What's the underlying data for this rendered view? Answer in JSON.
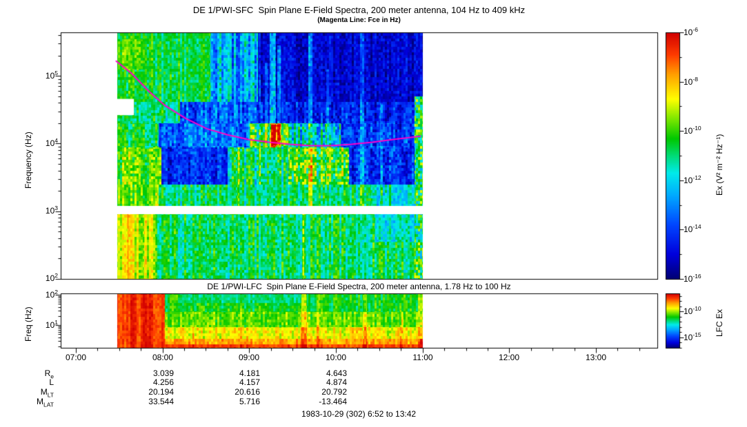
{
  "colors": {
    "magenta_line": "#ff00c8",
    "axis": "#000000",
    "background": "#ffffff"
  },
  "header": {
    "title": "DE 1/PWI-SFC  Spin Plane E-Field Spectra, 200 meter antenna, 104 Hz to 409 kHz",
    "subtitle": "(Magenta Line: Fce in Hz)"
  },
  "sfc_panel": {
    "ylabel": "Frequency (Hz)",
    "y_ticks": [
      {
        "base": "10",
        "exp": "5"
      },
      {
        "base": "10",
        "exp": "4"
      },
      {
        "base": "10",
        "exp": "3"
      },
      {
        "base": "10",
        "exp": "2"
      }
    ],
    "colorbar": {
      "label": "Ex (V² m⁻² Hz⁻¹)",
      "ticks": [
        {
          "base": "10",
          "exp": "-6"
        },
        {
          "base": "10",
          "exp": "-8"
        },
        {
          "base": "10",
          "exp": "-10"
        },
        {
          "base": "10",
          "exp": "-12"
        },
        {
          "base": "10",
          "exp": "-14"
        },
        {
          "base": "10",
          "exp": "-16"
        }
      ]
    }
  },
  "lfc_panel": {
    "title": "DE 1/PWI-LFC  Spin Plane E-Field Spectra, 200 meter antenna, 1.78 Hz to 100 Hz",
    "ylabel": "Freq (Hz)",
    "y_ticks": [
      {
        "base": "10",
        "exp": "2"
      },
      {
        "base": "10",
        "exp": "1"
      }
    ],
    "colorbar": {
      "label": "LFC Ex",
      "ticks": [
        {
          "base": "10",
          "exp": "-10"
        },
        {
          "base": "10",
          "exp": "-15"
        }
      ]
    }
  },
  "time_axis": {
    "labels": [
      "07:00",
      "08:00",
      "09:00",
      "10:00",
      "11:00",
      "12:00",
      "13:00"
    ]
  },
  "orbit_rows": [
    {
      "base": "R",
      "sub": "e",
      "values": [
        "3.039",
        "4.181",
        "4.643"
      ]
    },
    {
      "base": "L",
      "sub": "",
      "values": [
        "4.256",
        "4.157",
        "4.874"
      ]
    },
    {
      "base": "M",
      "sub": "LT",
      "values": [
        "20.194",
        "20.616",
        "20.792"
      ]
    },
    {
      "base": "M",
      "sub": "LAT",
      "values": [
        "33.544",
        "5.716",
        "-13.464"
      ]
    }
  ],
  "footer": {
    "caption": "1983-10-29 (302) 6:52 to 13:42"
  },
  "chart_data": {
    "type": "heatmap",
    "colormap": "rainbow",
    "time_span_hours": [
      6.867,
      13.7
    ],
    "panels": [
      {
        "id": "sfc",
        "title": "DE 1/PWI-SFC  Spin Plane E-Field Spectra, 200 meter antenna, 104 Hz to 409 kHz",
        "instrument": "SFC",
        "freq_range_hz": [
          104,
          409000
        ],
        "y_log10hz_range": [
          2.0,
          5.643
        ],
        "y_tick_log10": [
          5,
          4,
          3,
          2
        ],
        "x_tick_hours": [
          7,
          8,
          9,
          10,
          11,
          12,
          13
        ],
        "x_minor_step_hours": 0.25,
        "data_hours": [
          7.47,
          11.0
        ],
        "value_range": [
          -16,
          -6
        ],
        "colorbar_tick_log10": [
          -6,
          -8,
          -10,
          -12,
          -14,
          -16
        ],
        "gap_f": [
          2.96,
          3.08
        ],
        "white_patches": [
          {
            "t": [
              7.47,
              7.67
            ],
            "f": [
              4.42,
              4.66
            ]
          }
        ],
        "fce_line_hours_log10hz": [
          [
            7.46,
            5.224
          ],
          [
            7.64,
            5.04
          ],
          [
            7.84,
            4.776
          ],
          [
            8.03,
            4.56
          ],
          [
            8.27,
            4.37
          ],
          [
            8.51,
            4.22
          ],
          [
            8.75,
            4.13
          ],
          [
            8.99,
            4.06
          ],
          [
            9.23,
            4.02
          ],
          [
            9.47,
            3.99
          ],
          [
            9.7,
            3.97
          ],
          [
            9.94,
            3.97
          ],
          [
            10.18,
            3.99
          ],
          [
            10.42,
            4.02
          ],
          [
            10.66,
            4.06
          ],
          [
            10.98,
            4.11
          ]
        ],
        "regions": [
          {
            "t": [
              7.47,
              8.55
            ],
            "f": [
              4.62,
              5.643
            ],
            "v": -10.6,
            "nx": 0.7,
            "np": 0.7
          },
          {
            "t": [
              7.47,
              7.8
            ],
            "f": [
              5.1,
              5.55
            ],
            "v": -9.9,
            "nx": 0.5,
            "np": 0.6
          },
          {
            "t": [
              8.55,
              9.1
            ],
            "f": [
              4.62,
              5.643
            ],
            "v": -12.6,
            "nx": 1.3,
            "np": 1.0
          },
          {
            "t": [
              9.1,
              11.0
            ],
            "f": [
              4.62,
              5.643
            ],
            "v": -15.0,
            "nx": 0.5,
            "np": 0.7
          },
          {
            "t": [
              7.47,
              8.2
            ],
            "f": [
              4.3,
              4.62
            ],
            "v": -11.0,
            "nx": 0.8,
            "np": 0.8
          },
          {
            "t": [
              8.2,
              9.1
            ],
            "f": [
              4.3,
              4.62
            ],
            "v": -13.6,
            "nx": 1.0,
            "np": 1.0
          },
          {
            "t": [
              9.1,
              11.0
            ],
            "f": [
              4.3,
              4.62
            ],
            "v": -14.4,
            "nx": 0.7,
            "np": 0.9
          },
          {
            "t": [
              7.47,
              7.95
            ],
            "f": [
              3.95,
              4.3
            ],
            "v": -10.8,
            "nx": 0.8,
            "np": 0.8
          },
          {
            "t": [
              7.95,
              9.0
            ],
            "f": [
              3.95,
              4.3
            ],
            "v": -13.4,
            "nx": 1.0,
            "np": 1.0
          },
          {
            "t": [
              9.0,
              9.45
            ],
            "f": [
              3.95,
              4.3
            ],
            "v": -10.0,
            "nx": 1.2,
            "np": 1.6
          },
          {
            "t": [
              9.45,
              10.05
            ],
            "f": [
              3.95,
              4.3
            ],
            "v": -12.0,
            "nx": 1.2,
            "np": 1.3
          },
          {
            "t": [
              10.05,
              11.0
            ],
            "f": [
              3.95,
              4.3
            ],
            "v": -14.0,
            "nx": 0.8,
            "np": 1.0
          },
          {
            "t": [
              7.47,
              7.98
            ],
            "f": [
              3.4,
              3.95
            ],
            "v": -9.9,
            "nx": 0.9,
            "np": 0.9
          },
          {
            "t": [
              7.98,
              8.75
            ],
            "f": [
              3.4,
              3.95
            ],
            "v": -14.4,
            "nx": 0.8,
            "np": 0.9
          },
          {
            "t": [
              8.75,
              9.45
            ],
            "f": [
              3.4,
              3.95
            ],
            "v": -11.0,
            "nx": 1.1,
            "np": 1.1
          },
          {
            "t": [
              9.45,
              10.15
            ],
            "f": [
              3.4,
              3.95
            ],
            "v": -10.1,
            "nx": 1.0,
            "np": 1.4
          },
          {
            "t": [
              10.15,
              11.0
            ],
            "f": [
              3.4,
              3.95
            ],
            "v": -14.2,
            "nx": 0.8,
            "np": 1.0
          },
          {
            "t": [
              7.47,
              7.95
            ],
            "f": [
              3.08,
              3.4
            ],
            "v": -9.6,
            "nx": 0.8,
            "np": 0.7
          },
          {
            "t": [
              7.95,
              10.4
            ],
            "f": [
              3.08,
              3.4
            ],
            "v": -11.0,
            "nx": 0.8,
            "np": 0.8
          },
          {
            "t": [
              10.4,
              11.0
            ],
            "f": [
              3.08,
              3.4
            ],
            "v": -11.8,
            "nx": 0.8,
            "np": 0.8
          },
          {
            "t": [
              7.47,
              7.92
            ],
            "f": [
              2.0,
              2.96
            ],
            "v": -8.9,
            "nx": 0.8,
            "np": 0.6
          },
          {
            "t": [
              7.92,
              11.0
            ],
            "f": [
              2.0,
              2.96
            ],
            "v": -10.8,
            "nx": 0.8,
            "np": 0.8
          },
          {
            "t": [
              10.45,
              11.0
            ],
            "f": [
              2.55,
              2.96
            ],
            "v": -11.6,
            "nx": 0.7,
            "np": 0.8
          },
          {
            "t": [
              10.9,
              11.0
            ],
            "f": [
              2.0,
              4.7
            ],
            "v": -10.6,
            "nx": 0.3,
            "np": 2.0
          }
        ],
        "streaks": [
          {
            "t": 9.27,
            "w": 0.07,
            "f": [
              3.95,
              5.643
            ],
            "dv": 3.0
          },
          {
            "t": 9.34,
            "w": 0.035,
            "f": [
              3.95,
              5.45
            ],
            "dv": 2.3
          },
          {
            "t": 9.19,
            "w": 0.03,
            "f": [
              3.95,
              5.2
            ],
            "dv": 1.8
          },
          {
            "t": 9.3,
            "w": 0.1,
            "f": [
              3.98,
              4.28
            ],
            "dv": 2.2
          },
          {
            "t": 9.7,
            "w": 0.045,
            "f": [
              3.08,
              5.643
            ],
            "dv": 2.1
          },
          {
            "t": 10.3,
            "w": 0.05,
            "f": [
              3.08,
              5.643
            ],
            "dv": 1.9
          },
          {
            "t": 9.12,
            "w": 0.02,
            "f": [
              3.4,
              5.0
            ],
            "dv": 1.5
          },
          {
            "t": 9.9,
            "w": 0.025,
            "f": [
              3.4,
              5.1
            ],
            "dv": 1.4
          },
          {
            "t": 10.52,
            "w": 0.03,
            "f": [
              3.08,
              4.6
            ],
            "dv": 1.5
          },
          {
            "t": 10.62,
            "w": 0.02,
            "f": [
              3.08,
              4.4
            ],
            "dv": 1.2
          },
          {
            "t": 7.62,
            "w": 0.05,
            "f": [
              2.0,
              2.96
            ],
            "dv": 1.5
          },
          {
            "t": 7.8,
            "w": 0.035,
            "f": [
              2.0,
              2.96
            ],
            "dv": 1.3
          },
          {
            "t": 8.5,
            "w": 0.02,
            "f": [
              2.0,
              2.96
            ],
            "dv": 0.8
          },
          {
            "t": 9.63,
            "w": 0.03,
            "f": [
              2.0,
              2.96
            ],
            "dv": 1.0
          },
          {
            "t": 8.87,
            "w": 0.02,
            "f": [
              3.08,
              4.3
            ],
            "dv": 1.2
          }
        ]
      },
      {
        "id": "lfc",
        "title": "DE 1/PWI-LFC  Spin Plane E-Field Spectra, 200 meter antenna, 1.78 Hz to 100 Hz",
        "instrument": "LFC",
        "freq_range_hz": [
          1.78,
          100
        ],
        "y_log10hz_range": [
          0.25,
          2.05
        ],
        "y_tick_log10": [
          2,
          1
        ],
        "x_tick_hours": [
          7,
          8,
          9,
          10,
          11,
          12,
          13
        ],
        "x_minor_step_hours": 0.25,
        "data_hours": [
          7.47,
          11.0
        ],
        "value_range": [
          -17,
          -6.5
        ],
        "colorbar_tick_log10": [
          -10,
          -15
        ],
        "regions": [
          {
            "t": [
              7.47,
              8.02
            ],
            "f": [
              0.25,
              2.05
            ],
            "v": -7.2,
            "nx": 0.5,
            "np": 0.4
          },
          {
            "t": [
              8.02,
              11.0
            ],
            "f": [
              1.45,
              2.05
            ],
            "v": -11.1,
            "nx": 0.6,
            "np": 0.6
          },
          {
            "t": [
              8.2,
              9.6
            ],
            "f": [
              1.75,
              2.05
            ],
            "v": -11.7,
            "nx": 0.4,
            "np": 0.5
          },
          {
            "t": [
              8.02,
              11.0
            ],
            "f": [
              0.95,
              1.45
            ],
            "v": -10.4,
            "nx": 0.6,
            "np": 0.6
          },
          {
            "t": [
              8.02,
              11.0
            ],
            "f": [
              0.55,
              0.95
            ],
            "v": -9.3,
            "nx": 0.6,
            "np": 0.6
          },
          {
            "t": [
              8.02,
              11.0
            ],
            "f": [
              0.25,
              0.55
            ],
            "v": -8.5,
            "nx": 0.5,
            "np": 0.5
          },
          {
            "t": [
              8.02,
              11.0
            ],
            "f": [
              0.25,
              0.38
            ],
            "v": -7.5,
            "nx": 0.4,
            "np": 0.4
          }
        ],
        "streaks": [
          {
            "t": 9.63,
            "w": 0.06,
            "f": [
              0.25,
              2.05
            ],
            "dv": 1.6
          },
          {
            "t": 9.79,
            "w": 0.035,
            "f": [
              0.25,
              2.05
            ],
            "dv": 1.2
          },
          {
            "t": 10.33,
            "w": 0.05,
            "f": [
              0.25,
              2.05
            ],
            "dv": 1.3
          },
          {
            "t": 8.9,
            "w": 0.02,
            "f": [
              0.25,
              2.05
            ],
            "dv": 0.7
          },
          {
            "t": 10.75,
            "w": 0.03,
            "f": [
              0.25,
              1.5
            ],
            "dv": 0.9
          },
          {
            "t": 10.97,
            "w": 0.05,
            "f": [
              0.25,
              2.05
            ],
            "dv": 1.4
          },
          {
            "t": 8.35,
            "w": 0.02,
            "f": [
              0.25,
              2.05
            ],
            "dv": 0.8
          }
        ]
      }
    ]
  }
}
